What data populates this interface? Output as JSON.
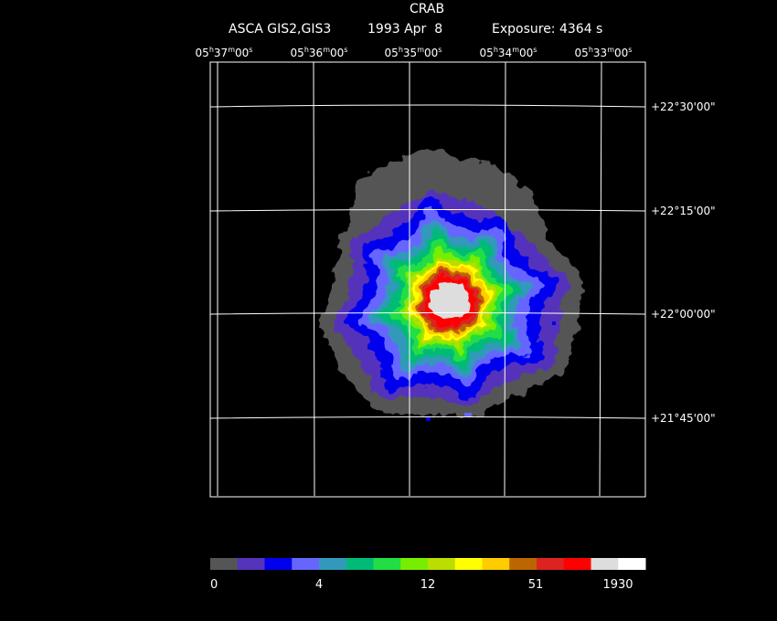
{
  "title": "CRAB",
  "subtitle": {
    "instrument": "ASCA GIS2,GIS3",
    "date": "1993 Apr  8",
    "exposure": "Exposure: 4364 s"
  },
  "ra_ticks": [
    {
      "h": "05",
      "m": "37",
      "s": "00"
    },
    {
      "h": "05",
      "m": "36",
      "s": "00"
    },
    {
      "h": "05",
      "m": "35",
      "s": "00"
    },
    {
      "h": "05",
      "m": "34",
      "s": "00"
    },
    {
      "h": "05",
      "m": "33",
      "s": "00"
    }
  ],
  "dec_ticks": [
    "+22°30'00\"",
    "+22°15'00\"",
    "+22°00'00\"",
    "+21°45'00\""
  ],
  "colorbar": {
    "colors": [
      "#555555",
      "#5533bb",
      "#0000ee",
      "#6666ff",
      "#3399bb",
      "#00bb77",
      "#22dd44",
      "#77ee00",
      "#bbdd00",
      "#ffff00",
      "#ffcc00",
      "#bb6600",
      "#dd2222",
      "#ff0000",
      "#dddddd",
      "#ffffff"
    ],
    "labels": [
      "0",
      "4",
      "12",
      "51",
      "1930"
    ]
  }
}
